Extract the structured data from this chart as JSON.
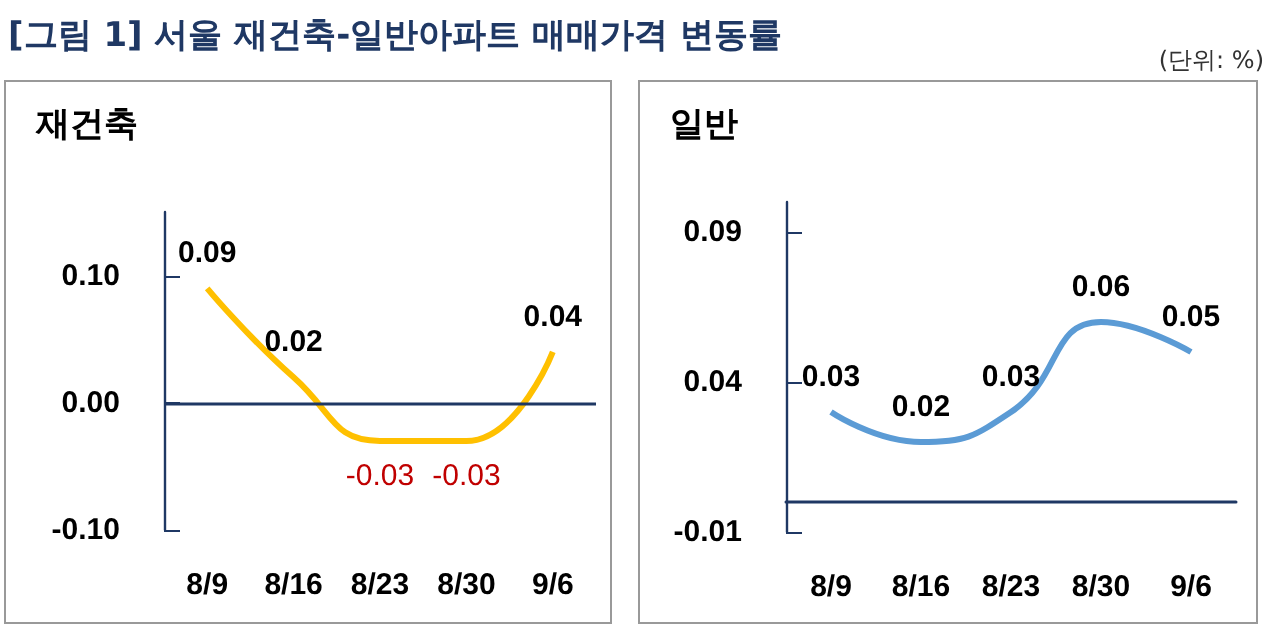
{
  "chart_data": [
    {
      "type": "line",
      "title": "[그림 1] 서울 재건축-일반아파트 매매가격 변동률",
      "subtitle": "재건축",
      "categories": [
        "8/9",
        "8/16",
        "8/23",
        "8/30",
        "9/6"
      ],
      "series": [
        {
          "color": "#ffc000",
          "values": [
            0.09,
            0.02,
            -0.03,
            -0.03,
            0.04
          ]
        }
      ],
      "ylim": [
        -0.1,
        0.15
      ],
      "yticks": [
        {
          "value": -0.1,
          "label": "-0.10"
        },
        {
          "value": 0,
          "label": "0.00"
        },
        {
          "value": 0.1,
          "label": "0.10"
        }
      ],
      "ref_lines": [
        {
          "axis": "y",
          "value": 0,
          "color": "#1f3864"
        }
      ],
      "data_labels": true,
      "grid": false,
      "marker": "none"
    },
    {
      "type": "line",
      "subtitle": "일반",
      "annotations": [
        "(단위: %)"
      ],
      "categories": [
        "8/9",
        "8/16",
        "8/23",
        "8/30",
        "9/6"
      ],
      "series": [
        {
          "color": "#5b9bd5",
          "values": [
            0.03,
            0.02,
            0.03,
            0.06,
            0.05
          ]
        }
      ],
      "ylim": [
        -0.01,
        0.1
      ],
      "yticks": [
        {
          "value": -0.01,
          "label": "-0.01"
        },
        {
          "value": 0.04,
          "label": "0.04"
        },
        {
          "value": 0.09,
          "label": "0.09"
        }
      ],
      "data_labels": true,
      "grid": false,
      "marker": "none"
    }
  ]
}
